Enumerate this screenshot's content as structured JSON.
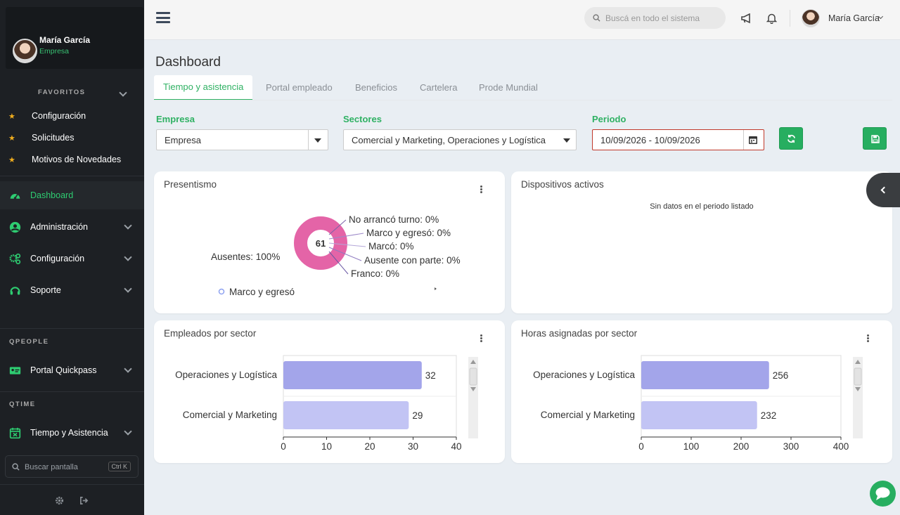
{
  "colors": {
    "accent": "#2fb163",
    "sidebar_bg": "#1d2024",
    "pie": "#e464a7",
    "bar1": "#a3a5ea",
    "bar2": "#c2c4f4"
  },
  "sidebar": {
    "user": {
      "name": "María García",
      "role": "Empresa"
    },
    "favorites_heading": "FAVORITOS",
    "favorites": [
      {
        "label": "Configuración"
      },
      {
        "label": "Solicitudes"
      },
      {
        "label": "Motivos de Novedades"
      }
    ],
    "nav": [
      {
        "label": "Dashboard",
        "icon": "dashboard-gauge-icon"
      },
      {
        "label": "Administración",
        "icon": "user-circle-icon"
      },
      {
        "label": "Configuración",
        "icon": "cogs-icon"
      },
      {
        "label": "Soporte",
        "icon": "headset-icon"
      }
    ],
    "qpeople_heading": "QPEOPLE",
    "qpeople_item": "Portal Quickpass",
    "qtime_heading": "QTIME",
    "qtime_item": "Tiempo y Asistencia",
    "search_placeholder": "Buscar pantalla",
    "search_shortcut": "Ctrl K"
  },
  "topbar": {
    "search_placeholder": "Buscá en todo el sistema",
    "user_name": "María García"
  },
  "page": {
    "title": "Dashboard",
    "tabs": [
      {
        "label": "Tiempo y asistencia",
        "active": true
      },
      {
        "label": "Portal empleado"
      },
      {
        "label": "Beneficios"
      },
      {
        "label": "Cartelera"
      },
      {
        "label": "Prode Mundial"
      }
    ],
    "filters": {
      "empresa_label": "Empresa",
      "empresa_value": "Empresa",
      "sectores_label": "Sectores",
      "sectores_value": "Comercial y Marketing, Operaciones y Logística",
      "periodo_label": "Periodo",
      "periodo_value": "10/09/2026 - 10/09/2026"
    }
  },
  "cards": {
    "presentismo": {
      "title": "Presentismo"
    },
    "dispositivos": {
      "title": "Dispositivos activos",
      "empty": "Sin datos en el periodo listado"
    },
    "empleados": {
      "title": "Empleados por sector"
    },
    "horas": {
      "title": "Horas asignadas por sector"
    }
  },
  "chart_data": [
    {
      "type": "pie",
      "center_label": "61",
      "slices": [
        {
          "label": "Ausentes",
          "value": 100,
          "display": "Ausentes: 100%"
        },
        {
          "label": "No arrancó turno",
          "value": 0,
          "display": "No arrancó turno: 0%"
        },
        {
          "label": "Marco y egresó",
          "value": 0,
          "display": "Marco y egresó: 0%"
        },
        {
          "label": "Marcó",
          "value": 0,
          "display": "Marcó: 0%"
        },
        {
          "label": "Ausente con parte",
          "value": 0,
          "display": "Ausente con parte: 0%"
        },
        {
          "label": "Franco",
          "value": 0,
          "display": "Franco: 0%"
        }
      ],
      "legend": [
        "Marco y egresó"
      ]
    },
    {
      "type": "bar",
      "orientation": "horizontal",
      "categories": [
        "Operaciones y Logística",
        "Comercial y Marketing"
      ],
      "values": [
        32,
        29
      ],
      "xlim": [
        0,
        40
      ],
      "ticks": [
        "0",
        "10",
        "20",
        "30",
        "40"
      ]
    },
    {
      "type": "bar",
      "orientation": "horizontal",
      "categories": [
        "Operaciones y Logística",
        "Comercial y Marketing"
      ],
      "values": [
        256,
        232
      ],
      "xlim": [
        0,
        400
      ],
      "ticks": [
        "0",
        "100",
        "200",
        "300",
        "400"
      ]
    }
  ]
}
